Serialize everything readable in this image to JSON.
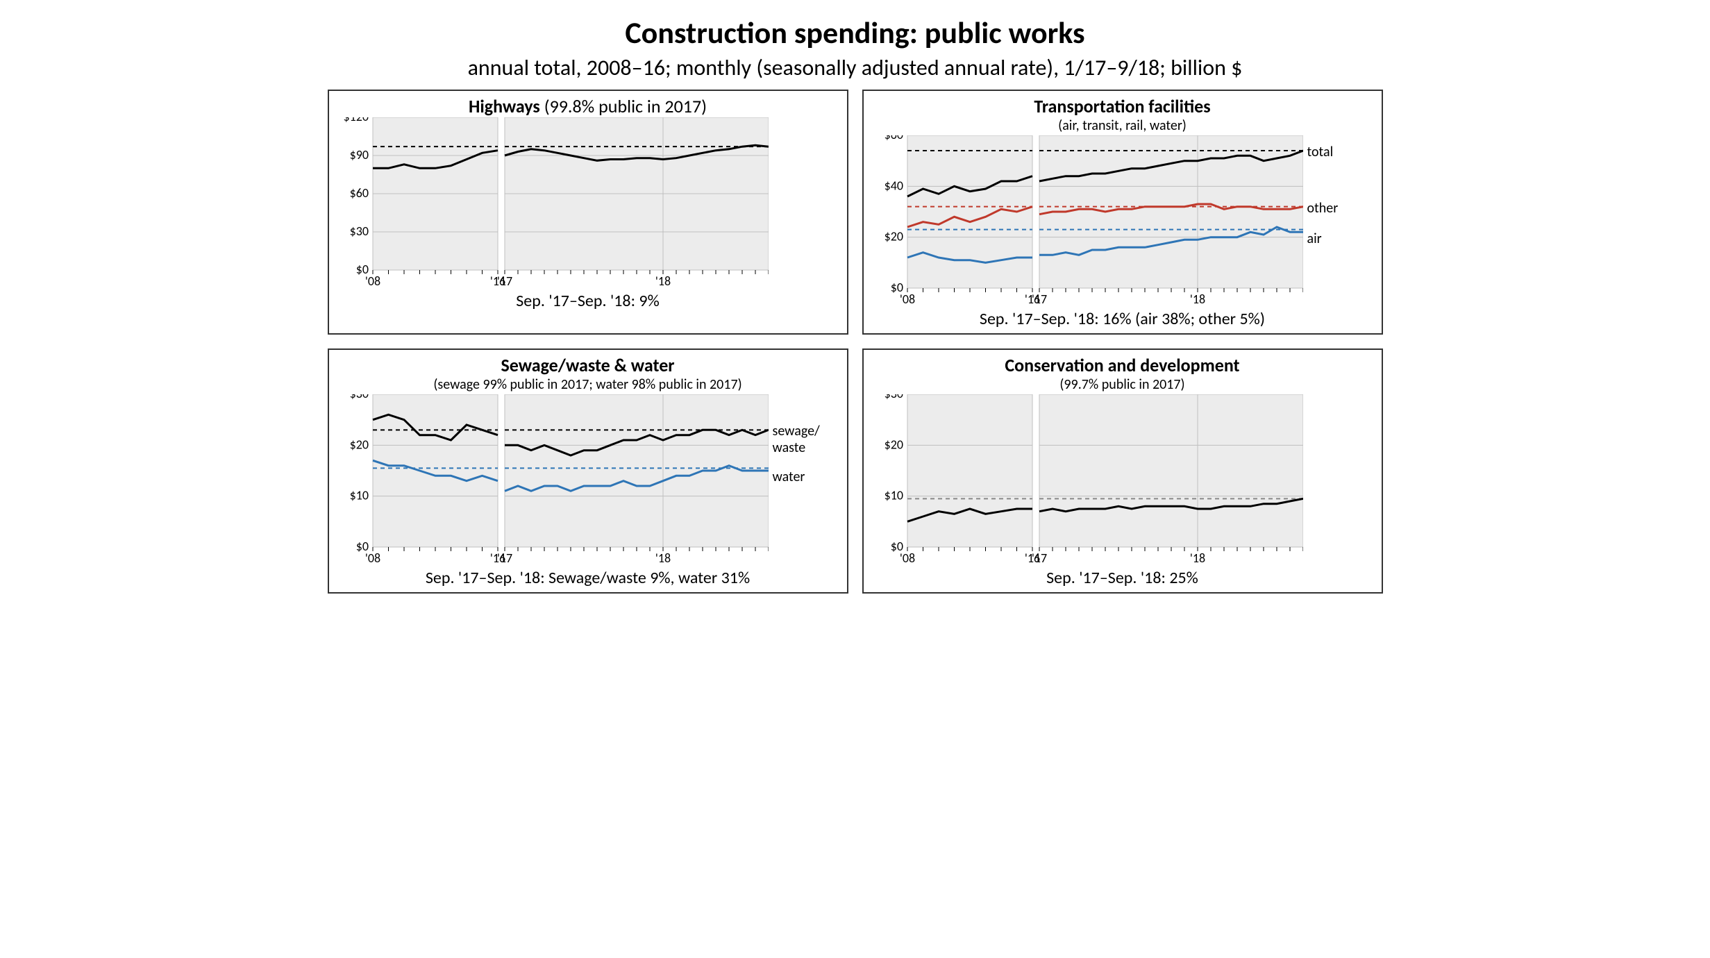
{
  "page": {
    "title": "Construction spending: public works",
    "subtitle": "annual total, 2008–16; monthly (seasonally adjusted annual rate), 1/17–9/18; billion $"
  },
  "colors": {
    "black": "#000000",
    "red": "#c0392b",
    "blue": "#2e75b6",
    "gridBg": "#ececec",
    "gridLine": "#bfbfbf",
    "border": "#333333",
    "dashGray": "#888888"
  },
  "style": {
    "line_width": 3,
    "dash_width": 2,
    "dash_pattern": "6,5",
    "axis_font": 18,
    "tick_len": 6
  },
  "panels": [
    {
      "id": "highways",
      "title_bold": "Highways",
      "title_rest": " (99.8% public in 2017)",
      "subnote": "",
      "footer": "Sep. '17–Sep. '18: 9%",
      "ymax": 120,
      "ystep": 30,
      "yprefix": "$",
      "xlabels_annual": [
        "'08",
        "",
        "",
        "",
        "",
        "",
        "",
        "",
        "'16"
      ],
      "xlabels_monthly": [
        "'17",
        "",
        "",
        "",
        "",
        "",
        "",
        "",
        "",
        "",
        "",
        "",
        "'18",
        "",
        "",
        "",
        "",
        "",
        "",
        "",
        ""
      ],
      "series": [
        {
          "name": "highways",
          "color": "#000000",
          "ref": 97,
          "annual": [
            80,
            80,
            83,
            80,
            80,
            82,
            87,
            92,
            94
          ],
          "monthly": [
            90,
            93,
            95,
            94,
            92,
            90,
            88,
            86,
            87,
            87,
            88,
            88,
            87,
            88,
            90,
            92,
            94,
            95,
            97,
            98,
            97
          ]
        }
      ],
      "right_labels": []
    },
    {
      "id": "transport",
      "title_bold": "Transportation facilities",
      "title_rest": "",
      "subnote": "(air, transit, rail, water)",
      "footer": "Sep. '17–Sep. '18: 16% (air 38%; other 5%)",
      "ymax": 60,
      "ystep": 20,
      "yprefix": "$",
      "xlabels_annual": [
        "'08",
        "",
        "",
        "",
        "",
        "",
        "",
        "",
        "'16"
      ],
      "xlabels_monthly": [
        "'17",
        "",
        "",
        "",
        "",
        "",
        "",
        "",
        "",
        "",
        "",
        "",
        "'18",
        "",
        "",
        "",
        "",
        "",
        "",
        "",
        ""
      ],
      "series": [
        {
          "name": "total",
          "color": "#000000",
          "ref": 54,
          "annual": [
            36,
            39,
            37,
            40,
            38,
            39,
            42,
            42,
            44
          ],
          "monthly": [
            42,
            43,
            44,
            44,
            45,
            45,
            46,
            47,
            47,
            48,
            49,
            50,
            50,
            51,
            51,
            52,
            52,
            50,
            51,
            52,
            54
          ]
        },
        {
          "name": "other",
          "color": "#c0392b",
          "ref": 32,
          "annual": [
            24,
            26,
            25,
            28,
            26,
            28,
            31,
            30,
            32
          ],
          "monthly": [
            29,
            30,
            30,
            31,
            31,
            30,
            31,
            31,
            32,
            32,
            32,
            32,
            33,
            33,
            31,
            32,
            32,
            31,
            31,
            31,
            32
          ]
        },
        {
          "name": "air",
          "color": "#2e75b6",
          "ref": 23,
          "annual": [
            12,
            14,
            12,
            11,
            11,
            10,
            11,
            12,
            12
          ],
          "monthly": [
            13,
            13,
            14,
            13,
            15,
            15,
            16,
            16,
            16,
            17,
            18,
            19,
            19,
            20,
            20,
            20,
            22,
            21,
            24,
            22,
            22
          ]
        }
      ],
      "right_labels": [
        {
          "text": "total",
          "y": 54
        },
        {
          "text": "other",
          "y": 32
        },
        {
          "text": "air",
          "y": 20
        }
      ]
    },
    {
      "id": "sewage",
      "title_bold": "Sewage/waste & water",
      "title_rest": "",
      "subnote": "(sewage 99% public in 2017; water 98% public in 2017)",
      "footer": "Sep. '17–Sep. '18: Sewage/waste 9%, water 31%",
      "ymax": 30,
      "ystep": 10,
      "yprefix": "$",
      "xlabels_annual": [
        "'08",
        "",
        "",
        "",
        "",
        "",
        "",
        "",
        "'16"
      ],
      "xlabels_monthly": [
        "'17",
        "",
        "",
        "",
        "",
        "",
        "",
        "",
        "",
        "",
        "",
        "",
        "'18",
        "",
        "",
        "",
        "",
        "",
        "",
        "",
        ""
      ],
      "series": [
        {
          "name": "sewage",
          "color": "#000000",
          "ref": 23,
          "annual": [
            25,
            26,
            25,
            22,
            22,
            21,
            24,
            23,
            22
          ],
          "monthly": [
            20,
            20,
            19,
            20,
            19,
            18,
            19,
            19,
            20,
            21,
            21,
            22,
            21,
            22,
            22,
            23,
            23,
            22,
            23,
            22,
            23
          ]
        },
        {
          "name": "water",
          "color": "#2e75b6",
          "ref": 15.5,
          "annual": [
            17,
            16,
            16,
            15,
            14,
            14,
            13,
            14,
            13
          ],
          "monthly": [
            11,
            12,
            11,
            12,
            12,
            11,
            12,
            12,
            12,
            13,
            12,
            12,
            13,
            14,
            14,
            15,
            15,
            16,
            15,
            15,
            15
          ]
        }
      ],
      "right_labels": [
        {
          "text": "sewage/\nwaste",
          "y": 23
        },
        {
          "text": "water",
          "y": 14
        }
      ]
    },
    {
      "id": "conservation",
      "title_bold": "Conservation and development",
      "title_rest": "",
      "subnote": "(99.7% public in 2017)",
      "footer": "Sep. '17–Sep. '18: 25%",
      "ymax": 30,
      "ystep": 10,
      "yprefix": "$",
      "xlabels_annual": [
        "'08",
        "",
        "",
        "",
        "",
        "",
        "",
        "",
        "'16"
      ],
      "xlabels_monthly": [
        "'17",
        "",
        "",
        "",
        "",
        "",
        "",
        "",
        "",
        "",
        "",
        "",
        "'18",
        "",
        "",
        "",
        "",
        "",
        "",
        "",
        ""
      ],
      "series": [
        {
          "name": "cons",
          "color": "#000000",
          "ref": 9.5,
          "refColor": "#888888",
          "annual": [
            5,
            6,
            7,
            6.5,
            7.5,
            6.5,
            7,
            7.5,
            7.5
          ],
          "monthly": [
            7,
            7.5,
            7,
            7.5,
            7.5,
            7.5,
            8,
            7.5,
            8,
            8,
            8,
            8,
            7.5,
            7.5,
            8,
            8,
            8,
            8.5,
            8.5,
            9,
            9.5
          ]
        }
      ],
      "right_labels": []
    }
  ]
}
